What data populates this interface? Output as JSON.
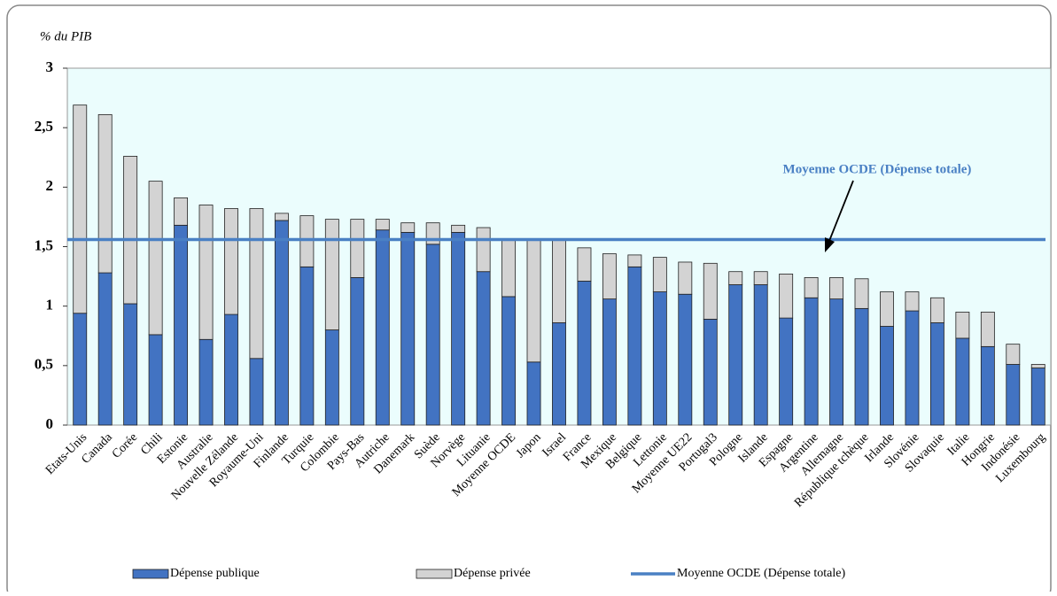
{
  "chart_data": {
    "type": "stacked_bar",
    "y_label": "% du PIB",
    "categories": [
      "Etats-Unis",
      "Canada",
      "Corée",
      "Chili",
      "Estonie",
      "Australie",
      "Nouvelle Zélande",
      "Royaume-Uni",
      "Finlande",
      "Turquie",
      "Colombie",
      "Pays-Bas",
      "Autriche",
      "Danemark",
      "Suède",
      "Norvège",
      "Lituanie",
      "Moyenne OCDE",
      "Japon",
      "Israel",
      "France",
      "Mexique",
      "Belgique",
      "Lettonie",
      "Moyenne UE22",
      "Portugal3",
      "Pologne",
      "Islande",
      "Espagne",
      "Argentine",
      "Allemagne",
      "République tchèque",
      "Irlande",
      "Slovénie",
      "Slovaquie",
      "Italie",
      "Hongrie",
      "Indonésie",
      "Luxembourg"
    ],
    "series": [
      {
        "name": "Dépense publique",
        "color": "#4273c2",
        "values": [
          0.94,
          1.28,
          1.02,
          0.76,
          1.68,
          0.72,
          0.93,
          0.56,
          1.72,
          1.33,
          0.8,
          1.24,
          1.64,
          1.62,
          1.52,
          1.62,
          1.29,
          1.08,
          0.53,
          0.86,
          1.21,
          1.06,
          1.33,
          1.12,
          1.1,
          0.89,
          1.18,
          1.18,
          0.9,
          1.07,
          1.06,
          0.98,
          0.83,
          0.96,
          0.86,
          0.73,
          0.66,
          0.51,
          0.48
        ]
      },
      {
        "name": "Dépense privée",
        "color": "#d3d3d3",
        "values": [
          1.75,
          1.33,
          1.24,
          1.29,
          0.23,
          1.13,
          0.89,
          1.26,
          0.06,
          0.43,
          0.93,
          0.49,
          0.09,
          0.08,
          0.18,
          0.06,
          0.37,
          0.48,
          1.03,
          0.7,
          0.28,
          0.38,
          0.1,
          0.29,
          0.27,
          0.47,
          0.11,
          0.11,
          0.37,
          0.17,
          0.18,
          0.25,
          0.29,
          0.16,
          0.21,
          0.22,
          0.29,
          0.17,
          0.03
        ]
      }
    ],
    "average_line": {
      "name": "Moyenne OCDE (Dépense totale)",
      "value": 1.56,
      "color": "#4a80c4"
    },
    "annotation": "Moyenne OCDE (Dépense totale)",
    "ylim": [
      0,
      3
    ],
    "yticks": [
      0,
      {
        "value": 0.5,
        "label": "0,5"
      },
      1,
      {
        "value": 1.5,
        "label": "1,5"
      },
      2,
      {
        "value": 2.5,
        "label": "2,5"
      },
      3
    ]
  }
}
